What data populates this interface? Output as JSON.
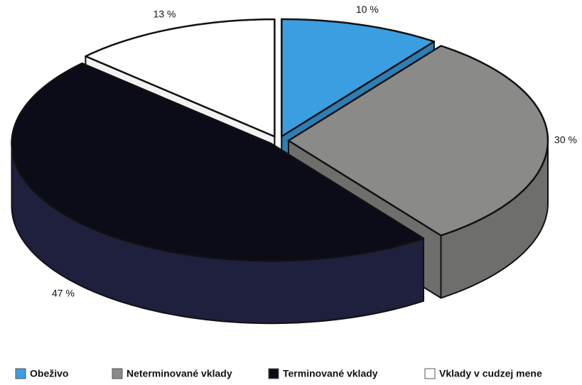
{
  "chart_data": {
    "type": "pie3d",
    "categories": [
      "Obeživo",
      "Neterminované vklady",
      "Terminované vklady",
      "Vklady v cudzej mene"
    ],
    "values": [
      10,
      30,
      47,
      13
    ],
    "value_labels": [
      "10 %",
      "30 %",
      "47 %",
      "13 %"
    ],
    "colors": [
      "#3a9ee0",
      "#8a8a88",
      "#0c0c18",
      "#ffffff"
    ],
    "legend": "bottom"
  }
}
